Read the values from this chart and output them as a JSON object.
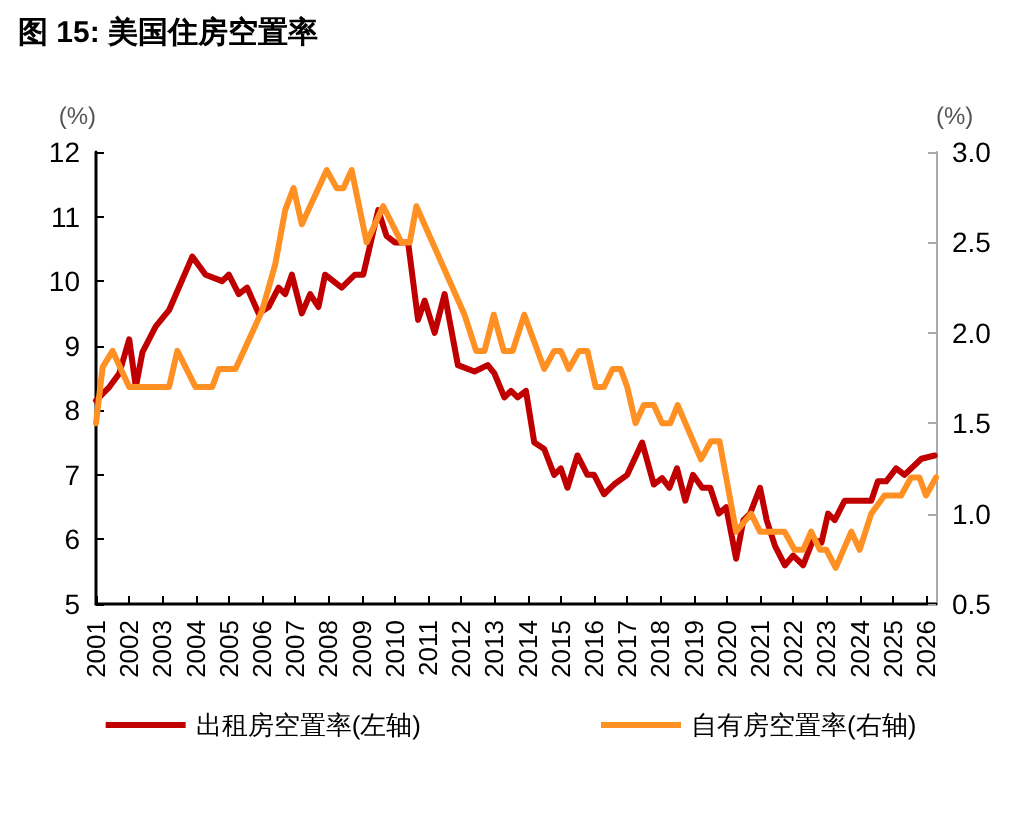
{
  "chart_data": {
    "type": "line",
    "title": "图 15: 美国住房空置率",
    "ylabel": "(%)",
    "y2label": "(%)",
    "xlim": [
      2001,
      2026.3
    ],
    "xticks": [
      2001,
      2002,
      2003,
      2004,
      2005,
      2006,
      2007,
      2008,
      2009,
      2010,
      2011,
      2012,
      2013,
      2014,
      2015,
      2016,
      2017,
      2018,
      2019,
      2020,
      2021,
      2022,
      2023,
      2024,
      2025,
      2026
    ],
    "ylim": [
      5,
      12
    ],
    "yticks": [
      5,
      6,
      7,
      8,
      9,
      10,
      11,
      12
    ],
    "y2lim": [
      0.5,
      3
    ],
    "y2ticks": [
      {
        "value": 0.5,
        "label": "0.5"
      },
      {
        "value": 1,
        "label": "1.0"
      },
      {
        "value": 1.5,
        "label": "1.5"
      },
      {
        "value": 2,
        "label": "2.0"
      },
      {
        "value": 2.5,
        "label": "2.5"
      },
      {
        "value": 3,
        "label": "3.0"
      }
    ],
    "grid": false,
    "legend": "bottom",
    "marker": "none",
    "line_style": "solid",
    "series": [
      {
        "name": "出租房空置率(左轴)",
        "color": "#c00000",
        "x": [
          2001.0,
          2001.4,
          2001.7,
          2002.0,
          2002.2,
          2002.4,
          2002.8,
          2003.2,
          2003.9,
          2004.3,
          2004.8,
          2005.0,
          2005.3,
          2005.55,
          2005.9,
          2006.2,
          2006.5,
          2006.7,
          2006.9,
          2007.2,
          2007.45,
          2007.7,
          2007.9,
          2008.4,
          2008.8,
          2009.05,
          2009.5,
          2009.75,
          2010.0,
          2010.4,
          2010.7,
          2010.9,
          2011.2,
          2011.5,
          2011.9,
          2012.4,
          2012.8,
          2013.0,
          2013.3,
          2013.5,
          2013.7,
          2013.95,
          2014.2,
          2014.5,
          2014.8,
          2015.0,
          2015.2,
          2015.5,
          2015.8,
          2016.0,
          2016.3,
          2016.6,
          2017.0,
          2017.45,
          2017.8,
          2018.05,
          2018.27,
          2018.5,
          2018.75,
          2018.98,
          2019.26,
          2019.5,
          2019.76,
          2019.98,
          2020.28,
          2020.5,
          2020.7,
          2021.0,
          2021.2,
          2021.45,
          2021.75,
          2022.0,
          2022.3,
          2022.6,
          2022.85,
          2023.05,
          2023.25,
          2023.55,
          2024.05,
          2024.35,
          2024.55,
          2024.8,
          2025.1,
          2025.35,
          2025.86,
          2026.26
        ],
        "values": [
          8.15,
          8.36,
          8.57,
          9.1,
          8.36,
          8.9,
          9.3,
          9.55,
          10.38,
          10.1,
          10.0,
          10.1,
          9.8,
          9.9,
          9.5,
          9.6,
          9.9,
          9.8,
          10.1,
          9.5,
          9.8,
          9.6,
          10.1,
          9.9,
          10.1,
          10.1,
          11.1,
          10.7,
          10.6,
          10.6,
          9.4,
          9.7,
          9.2,
          9.8,
          8.7,
          8.6,
          8.7,
          8.57,
          8.2,
          8.3,
          8.2,
          8.3,
          7.5,
          7.4,
          7.0,
          7.1,
          6.8,
          7.3,
          7.0,
          7.0,
          6.7,
          6.85,
          7.0,
          7.5,
          6.85,
          6.95,
          6.8,
          7.1,
          6.6,
          7.0,
          6.8,
          6.8,
          6.4,
          6.5,
          5.7,
          6.3,
          6.4,
          6.8,
          6.3,
          5.9,
          5.6,
          5.75,
          5.6,
          6.0,
          5.95,
          6.4,
          6.3,
          6.6,
          6.6,
          6.6,
          6.9,
          6.9,
          7.1,
          7.0,
          7.25,
          7.3
        ]
      },
      {
        "name": "自有房空置率(右轴)",
        "color": "#ff9124",
        "axis": "y2",
        "x": [
          2001.0,
          2001.2,
          2001.5,
          2002.0,
          2003.2,
          2003.45,
          2004.0,
          2004.5,
          2004.7,
          2005.2,
          2006.0,
          2006.4,
          2006.7,
          2006.95,
          2007.2,
          2007.95,
          2008.25,
          2008.45,
          2008.7,
          2009.15,
          2009.65,
          2010.2,
          2010.45,
          2010.65,
          2012.1,
          2012.45,
          2012.7,
          2012.98,
          2013.28,
          2013.55,
          2013.9,
          2014.5,
          2014.8,
          2015.0,
          2015.24,
          2015.55,
          2015.8,
          2016.05,
          2016.3,
          2016.56,
          2016.8,
          2017.0,
          2017.25,
          2017.5,
          2017.8,
          2018.05,
          2018.3,
          2018.52,
          2019.22,
          2019.52,
          2019.78,
          2020.28,
          2020.73,
          2021.0,
          2021.74,
          2022.04,
          2022.3,
          2022.54,
          2022.8,
          2023.0,
          2023.28,
          2023.75,
          2024.0,
          2024.35,
          2024.75,
          2025.25,
          2025.55,
          2025.8,
          2026.0,
          2026.3
        ],
        "values": [
          1.5,
          1.81,
          1.9,
          1.7,
          1.7,
          1.9,
          1.7,
          1.7,
          1.8,
          1.8,
          2.12,
          2.38,
          2.68,
          2.8,
          2.6,
          2.9,
          2.8,
          2.8,
          2.9,
          2.5,
          2.7,
          2.5,
          2.5,
          2.7,
          2.1,
          1.9,
          1.9,
          2.1,
          1.9,
          1.9,
          2.1,
          1.8,
          1.9,
          1.9,
          1.8,
          1.9,
          1.9,
          1.7,
          1.7,
          1.8,
          1.8,
          1.7,
          1.5,
          1.6,
          1.6,
          1.5,
          1.5,
          1.6,
          1.3,
          1.4,
          1.4,
          0.9,
          1.0,
          0.9,
          0.9,
          0.8,
          0.8,
          0.9,
          0.8,
          0.8,
          0.7,
          0.9,
          0.8,
          1.0,
          1.1,
          1.1,
          1.2,
          1.2,
          1.1,
          1.2
        ]
      }
    ]
  }
}
